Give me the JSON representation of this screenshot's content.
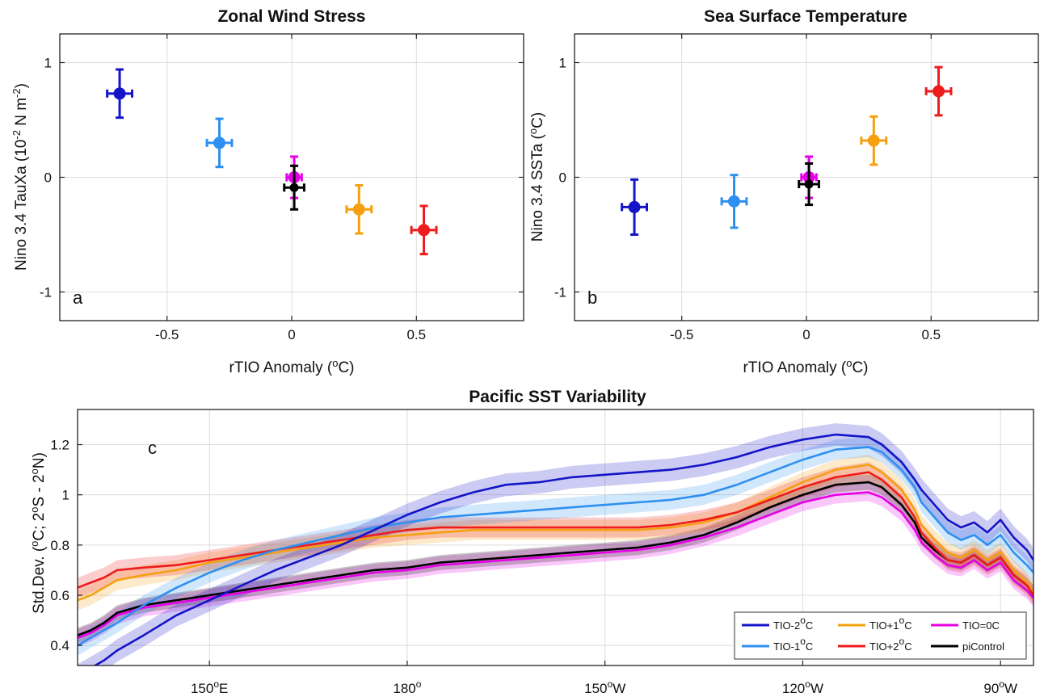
{
  "chart_data": [
    {
      "type": "scatter",
      "panel_label": "a",
      "title": "Zonal Wind Stress",
      "xlabel": "rTIO Anomaly (°C)",
      "ylabel": "Nino 3.4 TauXa (10⁻² N m⁻²)",
      "xlim": [
        -0.93,
        0.93
      ],
      "ylim": [
        -1.25,
        1.25
      ],
      "xticks": [
        -0.5,
        0,
        0.5
      ],
      "xticklabels": [
        "-0.5",
        "0",
        "0.5"
      ],
      "yticks": [
        -1,
        0,
        1
      ],
      "yticklabels": [
        "-1",
        "0",
        "1"
      ],
      "grid": true,
      "points": [
        {
          "series": "TIO-2°C",
          "color": "#1414c8",
          "x": -0.69,
          "y": 0.73,
          "xerr": 0.05,
          "yerr": 0.21
        },
        {
          "series": "TIO-1°C",
          "color": "#2e90f0",
          "x": -0.29,
          "y": 0.3,
          "xerr": 0.05,
          "yerr": 0.21
        },
        {
          "series": "TIO=0C",
          "color": "#e600e6",
          "x": 0.01,
          "y": 0.0,
          "xerr": 0.03,
          "yerr": 0.18
        },
        {
          "series": "piControl",
          "color": "#000000",
          "x": 0.01,
          "y": -0.09,
          "xerr": 0.04,
          "yerr": 0.19
        },
        {
          "series": "TIO+1°C",
          "color": "#f5a010",
          "x": 0.27,
          "y": -0.28,
          "xerr": 0.05,
          "yerr": 0.21
        },
        {
          "series": "TIO+2°C",
          "color": "#ee1c1c",
          "x": 0.53,
          "y": -0.46,
          "xerr": 0.05,
          "yerr": 0.21
        }
      ]
    },
    {
      "type": "scatter",
      "panel_label": "b",
      "title": "Sea Surface Temperature",
      "xlabel": "rTIO Anomaly (°C)",
      "ylabel": "Nino 3.4 SSTa (°C)",
      "xlim": [
        -0.93,
        0.93
      ],
      "ylim": [
        -1.25,
        1.25
      ],
      "xticks": [
        -0.5,
        0,
        0.5
      ],
      "xticklabels": [
        "-0.5",
        "0",
        "0.5"
      ],
      "yticks": [
        -1,
        0,
        1
      ],
      "yticklabels": [
        "-1",
        "0",
        "1"
      ],
      "grid": true,
      "points": [
        {
          "series": "TIO-2°C",
          "color": "#1414c8",
          "x": -0.69,
          "y": -0.26,
          "xerr": 0.05,
          "yerr": 0.24
        },
        {
          "series": "TIO-1°C",
          "color": "#2e90f0",
          "x": -0.29,
          "y": -0.21,
          "xerr": 0.05,
          "yerr": 0.23
        },
        {
          "series": "TIO=0C",
          "color": "#e600e6",
          "x": 0.01,
          "y": 0.0,
          "xerr": 0.03,
          "yerr": 0.18
        },
        {
          "series": "piControl",
          "color": "#000000",
          "x": 0.01,
          "y": -0.06,
          "xerr": 0.04,
          "yerr": 0.18
        },
        {
          "series": "TIO+1°C",
          "color": "#f5a010",
          "x": 0.27,
          "y": 0.32,
          "xerr": 0.05,
          "yerr": 0.21
        },
        {
          "series": "TIO+2°C",
          "color": "#ee1c1c",
          "x": 0.53,
          "y": 0.75,
          "xerr": 0.05,
          "yerr": 0.21
        }
      ]
    },
    {
      "type": "line",
      "panel_label": "c",
      "title": "Pacific SST Variability",
      "ylabel": "Std.Dev. (°C; 2°S - 2°N)",
      "xlim": [
        130,
        275
      ],
      "ylim": [
        0.32,
        1.34
      ],
      "xticks": [
        150,
        180,
        210,
        240,
        270
      ],
      "xticklabels": [
        "150°E",
        "180°",
        "150°W",
        "120°W",
        "90°W"
      ],
      "yticks": [
        0.4,
        0.6,
        0.8,
        1.0,
        1.2
      ],
      "yticklabels": [
        "0.4",
        "0.6",
        "0.8",
        "1",
        "1.2"
      ],
      "grid": true,
      "legend_position": "bottom-right",
      "legend_columns": 3,
      "x": [
        130,
        132,
        134,
        136,
        140,
        145,
        150,
        155,
        160,
        165,
        170,
        175,
        180,
        185,
        190,
        195,
        200,
        205,
        210,
        215,
        220,
        225,
        230,
        235,
        240,
        245,
        250,
        252,
        255,
        257,
        258,
        260,
        262,
        264,
        266,
        268,
        270,
        272,
        274,
        275
      ],
      "series": [
        {
          "name": "TIO-2°C",
          "color": "#1414c8",
          "band": 0.045,
          "values": [
            0.28,
            0.31,
            0.34,
            0.38,
            0.44,
            0.52,
            0.58,
            0.64,
            0.7,
            0.75,
            0.8,
            0.86,
            0.92,
            0.97,
            1.01,
            1.04,
            1.05,
            1.07,
            1.08,
            1.09,
            1.1,
            1.12,
            1.15,
            1.19,
            1.22,
            1.24,
            1.23,
            1.2,
            1.13,
            1.06,
            1.02,
            0.96,
            0.9,
            0.87,
            0.89,
            0.85,
            0.9,
            0.83,
            0.78,
            0.74
          ]
        },
        {
          "name": "TIO-1°C",
          "color": "#2e90f0",
          "band": 0.04,
          "values": [
            0.4,
            0.43,
            0.46,
            0.49,
            0.56,
            0.63,
            0.69,
            0.74,
            0.78,
            0.81,
            0.84,
            0.87,
            0.89,
            0.91,
            0.92,
            0.93,
            0.94,
            0.95,
            0.96,
            0.97,
            0.98,
            1.0,
            1.04,
            1.09,
            1.14,
            1.18,
            1.19,
            1.17,
            1.1,
            1.03,
            0.97,
            0.91,
            0.85,
            0.82,
            0.84,
            0.8,
            0.84,
            0.77,
            0.72,
            0.69
          ]
        },
        {
          "name": "TIO+1°C",
          "color": "#f5a010",
          "band": 0.04,
          "values": [
            0.58,
            0.6,
            0.63,
            0.66,
            0.68,
            0.7,
            0.73,
            0.75,
            0.77,
            0.79,
            0.81,
            0.83,
            0.84,
            0.85,
            0.86,
            0.86,
            0.86,
            0.86,
            0.86,
            0.86,
            0.87,
            0.89,
            0.93,
            0.99,
            1.05,
            1.1,
            1.12,
            1.09,
            1.02,
            0.94,
            0.88,
            0.82,
            0.77,
            0.75,
            0.78,
            0.74,
            0.77,
            0.7,
            0.65,
            0.61
          ]
        },
        {
          "name": "TIO+2°C",
          "color": "#ee1c1c",
          "band": 0.04,
          "values": [
            0.63,
            0.65,
            0.67,
            0.7,
            0.71,
            0.72,
            0.74,
            0.76,
            0.78,
            0.8,
            0.82,
            0.84,
            0.86,
            0.87,
            0.87,
            0.87,
            0.87,
            0.87,
            0.87,
            0.87,
            0.88,
            0.9,
            0.93,
            0.98,
            1.03,
            1.07,
            1.09,
            1.06,
            0.99,
            0.91,
            0.85,
            0.79,
            0.74,
            0.73,
            0.76,
            0.72,
            0.75,
            0.68,
            0.64,
            0.6
          ]
        },
        {
          "name": "TIO=0C",
          "color": "#e600e6",
          "band": 0.035,
          "values": [
            0.43,
            0.45,
            0.48,
            0.52,
            0.55,
            0.57,
            0.59,
            0.61,
            0.63,
            0.65,
            0.67,
            0.69,
            0.7,
            0.72,
            0.73,
            0.74,
            0.75,
            0.76,
            0.77,
            0.78,
            0.8,
            0.83,
            0.87,
            0.92,
            0.97,
            1.0,
            1.01,
            0.99,
            0.93,
            0.86,
            0.81,
            0.76,
            0.72,
            0.71,
            0.74,
            0.7,
            0.73,
            0.66,
            0.62,
            0.59
          ]
        },
        {
          "name": "piControl",
          "color": "#000000",
          "band": 0.03,
          "values": [
            0.44,
            0.46,
            0.49,
            0.53,
            0.56,
            0.58,
            0.6,
            0.62,
            0.64,
            0.66,
            0.68,
            0.7,
            0.71,
            0.73,
            0.74,
            0.75,
            0.76,
            0.77,
            0.78,
            0.79,
            0.81,
            0.84,
            0.89,
            0.95,
            1.0,
            1.04,
            1.05,
            1.03,
            0.96,
            0.89,
            0.83,
            0.78,
            0.74,
            0.73,
            0.76,
            0.72,
            0.75,
            0.68,
            0.64,
            0.61
          ]
        }
      ]
    }
  ],
  "legend": [
    {
      "name": "TIO-2°C",
      "color": "#1414c8"
    },
    {
      "name": "TIO+1°C",
      "color": "#f5a010"
    },
    {
      "name": "TIO=0C",
      "color": "#e600e6"
    },
    {
      "name": "TIO-1°C",
      "color": "#2e90f0"
    },
    {
      "name": "TIO+2°C",
      "color": "#ee1c1c"
    },
    {
      "name": "piControl",
      "color": "#000000"
    }
  ]
}
